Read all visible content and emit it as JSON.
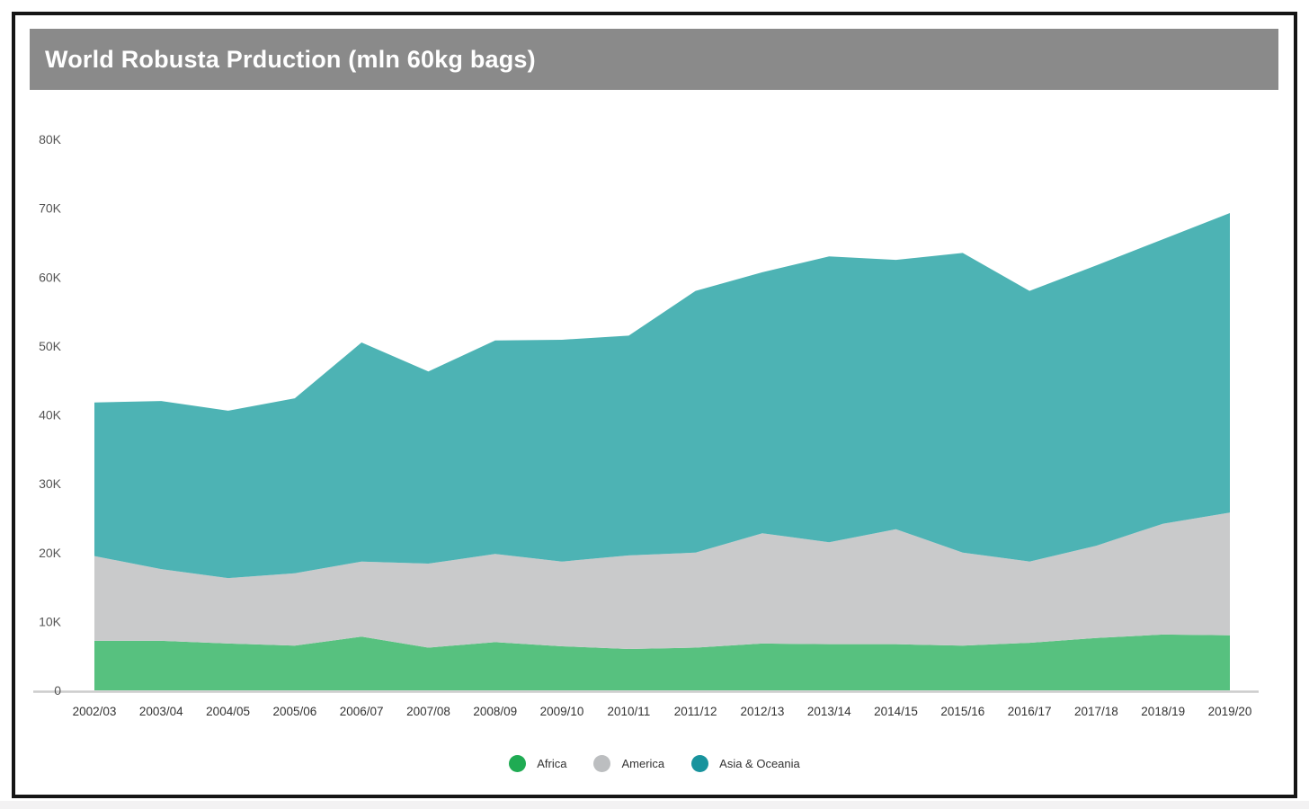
{
  "window": {
    "title_bar": "World Robusta Prduction (mln 60kg bags)"
  },
  "chart_data": {
    "type": "area",
    "stacked": true,
    "title": "World Robusta Prduction (mln 60kg bags)",
    "grid": false,
    "legend_position": "bottom",
    "categories": [
      "2002/03",
      "2003/04",
      "2004/05",
      "2005/06",
      "2006/07",
      "2007/08",
      "2008/09",
      "2009/10",
      "2010/11",
      "2011/12",
      "2012/13",
      "2013/14",
      "2014/15",
      "2015/16",
      "2016/17",
      "2017/18",
      "2018/19",
      "2019/20"
    ],
    "series": [
      {
        "name": "Africa",
        "fill": "#57c17f",
        "legend_color": "#1fab53",
        "values": [
          7.2,
          7.2,
          6.8,
          6.5,
          7.8,
          6.2,
          7.0,
          6.4,
          6.0,
          6.2,
          6.8,
          6.7,
          6.7,
          6.5,
          6.9,
          7.6,
          8.1,
          8.0
        ]
      },
      {
        "name": "America",
        "fill": "#c9cacb",
        "legend_color": "#bcbec0",
        "values": [
          12.3,
          10.4,
          9.5,
          10.5,
          10.9,
          12.2,
          12.8,
          12.3,
          13.6,
          13.8,
          16.0,
          14.8,
          16.7,
          13.5,
          11.8,
          13.4,
          16.1,
          17.8
        ]
      },
      {
        "name": "Asia & Oceania",
        "fill": "#4db3b4",
        "legend_color": "#18939d",
        "values": [
          22.3,
          24.4,
          24.3,
          25.4,
          31.8,
          27.9,
          31.0,
          32.2,
          31.9,
          38.0,
          37.9,
          41.5,
          39.1,
          43.5,
          39.3,
          40.7,
          41.3,
          43.5
        ]
      }
    ],
    "y_axis": {
      "min": 0,
      "max": 80,
      "tick_step": 10,
      "tick_labels": [
        "0",
        "10K",
        "20K",
        "30K",
        "40K",
        "50K",
        "60K",
        "70K",
        "80K"
      ]
    }
  },
  "colors": {
    "title_bar_bg": "#8a8a8a",
    "title_text": "#ffffff",
    "frame_border": "#151515",
    "axis_line": "#cccccc",
    "y_tick_text": "#555555",
    "x_tick_text": "#333333",
    "page_bg": "#ffffff",
    "footer_strip": "#f3f2f3"
  }
}
